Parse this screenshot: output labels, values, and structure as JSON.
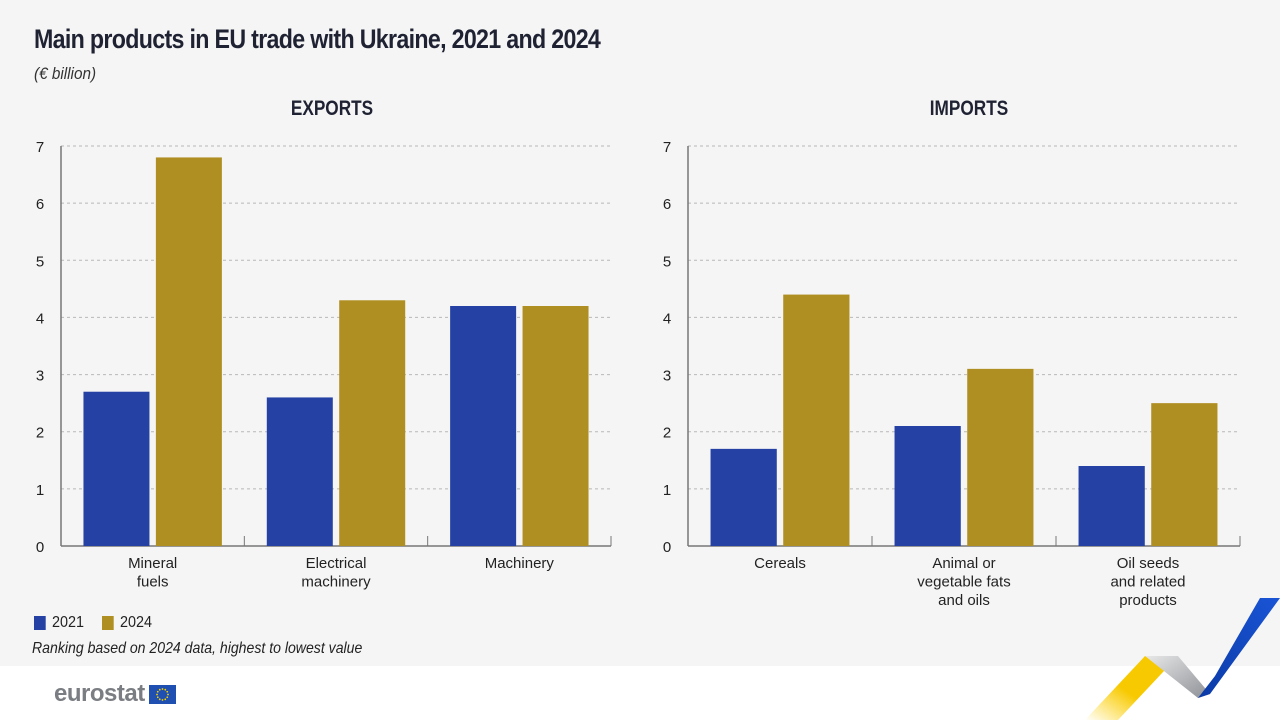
{
  "header": {
    "title": "Main products in EU trade with Ukraine, 2021 and 2024",
    "subtitle": "(€ billion)"
  },
  "colors": {
    "series_2021": "#2541a3",
    "series_2024": "#b08f22",
    "background": "#f5f5f5"
  },
  "chart_data": [
    {
      "type": "bar",
      "title": "EXPORTS",
      "categories": [
        [
          "Mineral",
          "fuels"
        ],
        [
          "Electrical",
          "machinery"
        ],
        [
          "Machinery"
        ]
      ],
      "series": [
        {
          "name": "2021",
          "values": [
            2.7,
            2.6,
            4.2
          ]
        },
        {
          "name": "2024",
          "values": [
            6.8,
            4.3,
            4.2
          ]
        }
      ],
      "xlabel": "",
      "ylabel": "€ billion",
      "ylim": [
        0,
        7
      ],
      "yticks": [
        0,
        1,
        2,
        3,
        4,
        5,
        6,
        7
      ],
      "grid": true
    },
    {
      "type": "bar",
      "title": "IMPORTS",
      "categories": [
        [
          "Cereals"
        ],
        [
          "Animal or",
          "vegetable fats",
          "and oils"
        ],
        [
          "Oil seeds",
          "and related",
          "products"
        ]
      ],
      "series": [
        {
          "name": "2021",
          "values": [
            1.7,
            2.1,
            1.4
          ]
        },
        {
          "name": "2024",
          "values": [
            4.4,
            3.1,
            2.5
          ]
        }
      ],
      "xlabel": "",
      "ylabel": "€ billion",
      "ylim": [
        0,
        7
      ],
      "yticks": [
        0,
        1,
        2,
        3,
        4,
        5,
        6,
        7
      ],
      "grid": true
    }
  ],
  "legend": {
    "placement": "bottom-left",
    "items": [
      {
        "label": "2021"
      },
      {
        "label": "2024"
      }
    ]
  },
  "footer": {
    "note": "Ranking based on 2024 data, highest to lowest value",
    "logo_text": "eurostat"
  }
}
